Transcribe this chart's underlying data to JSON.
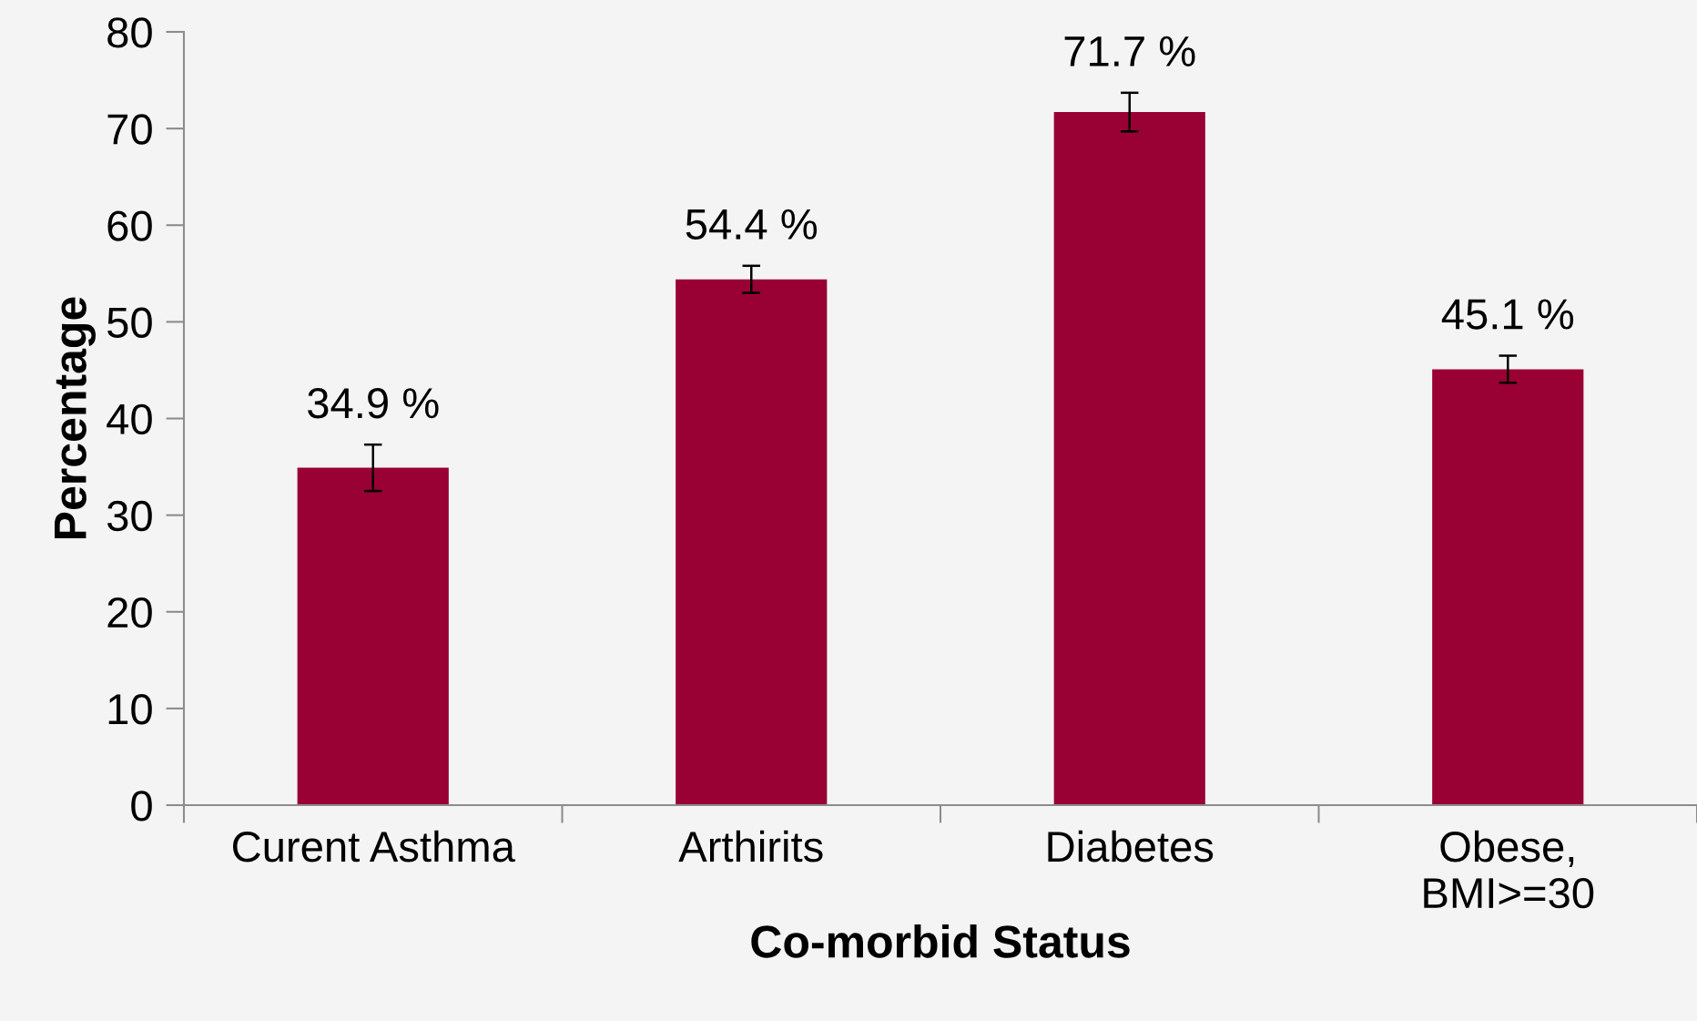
{
  "chart_data": {
    "type": "bar",
    "xlabel": "Co-morbid Status",
    "ylabel": "Percentage",
    "categories": [
      "Curent Asthma",
      "Arthirits",
      "Diabetes",
      "Obese,\nBMI>=30"
    ],
    "values": [
      34.9,
      54.4,
      71.7,
      45.1
    ],
    "errors": [
      2.4,
      1.4,
      2.0,
      1.4
    ],
    "value_labels": [
      "34.9 %",
      "54.4 %",
      "71.7 %",
      "45.1 %"
    ],
    "color": "#990033",
    "ylim": [
      0,
      80
    ],
    "yticks": [
      0,
      10,
      20,
      30,
      40,
      50,
      60,
      70,
      80
    ],
    "grid": false,
    "legend": false
  }
}
